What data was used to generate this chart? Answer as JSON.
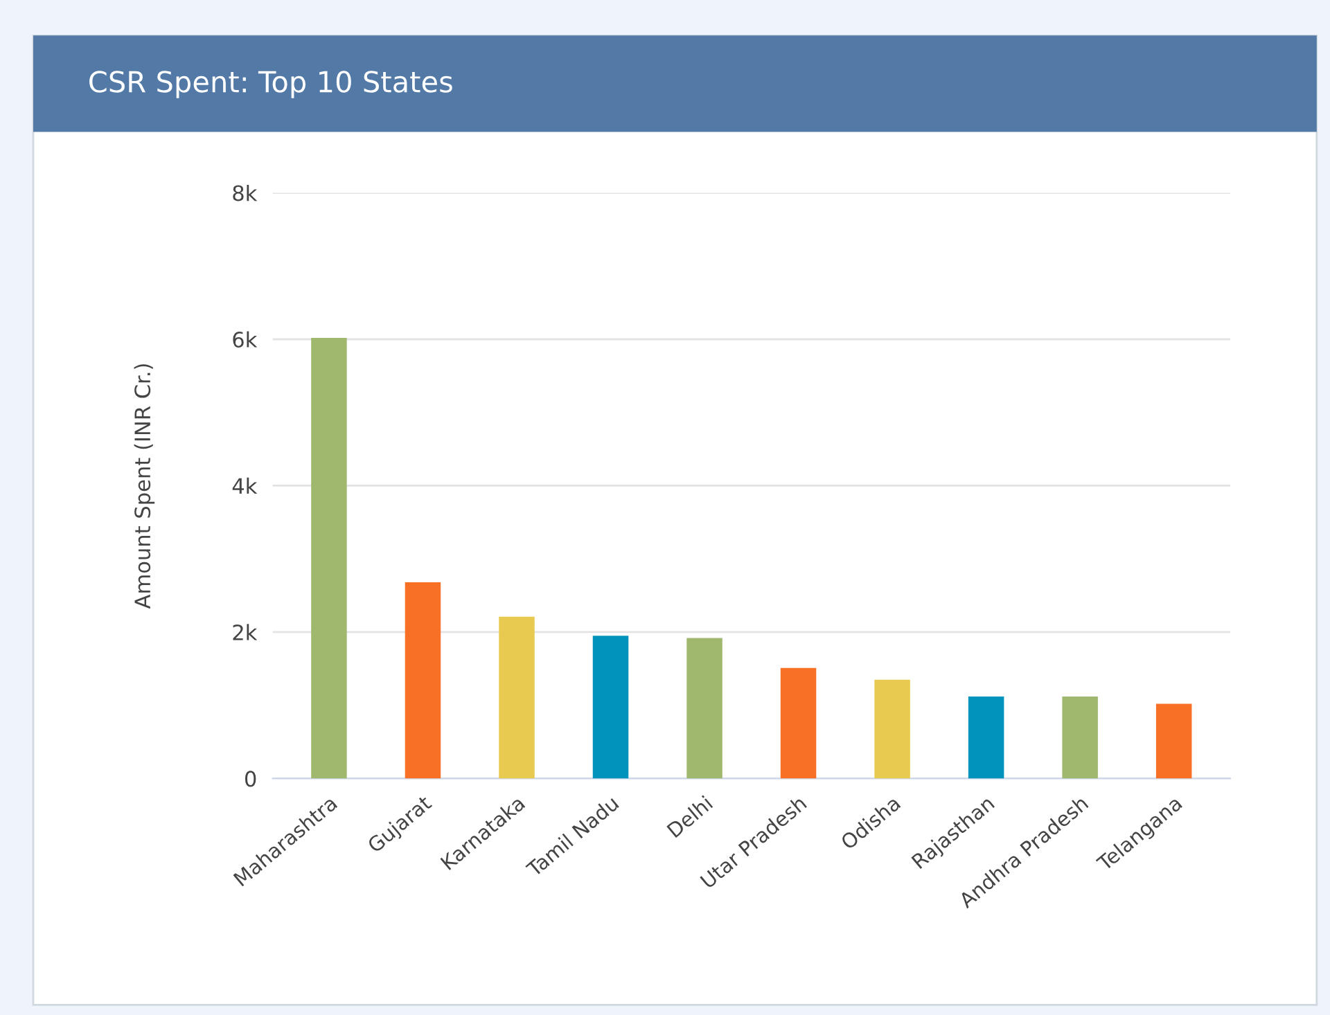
{
  "chart_data": {
    "type": "bar",
    "title": "CSR Spent: Top 10 States",
    "ylabel": "Amount Spent (INR Cr.)",
    "categories": [
      "Maharashtra",
      "Gujarat",
      "Karnataka",
      "Tamil Nadu",
      "Delhi",
      "Utar Pradesh",
      "Odisha",
      "Rajasthan",
      "Andhra Pradesh",
      "Telangana"
    ],
    "values": [
      6020,
      2680,
      2210,
      1950,
      1920,
      1510,
      1350,
      1120,
      1120,
      1020
    ],
    "colors": [
      "#a0b86e",
      "#f77025",
      "#e9ca50",
      "#0093bb",
      "#a0b86e",
      "#f77025",
      "#e9ca50",
      "#0093bb",
      "#a0b86e",
      "#f77025"
    ],
    "ylim": [
      0,
      8000
    ],
    "yticks": [
      {
        "value": 0,
        "label": "0"
      },
      {
        "value": 2000,
        "label": "2k"
      },
      {
        "value": 4000,
        "label": "4k"
      },
      {
        "value": 6000,
        "label": "6k"
      },
      {
        "value": 8000,
        "label": "8k"
      }
    ],
    "grid": "y"
  }
}
